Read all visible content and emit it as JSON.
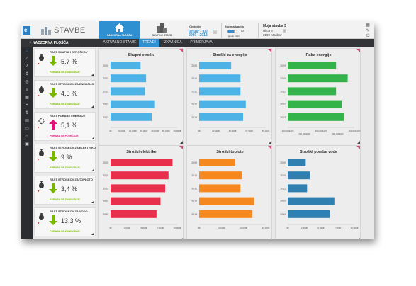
{
  "header": {
    "brand": "STAVBE",
    "nav_home_label": "NADZORNA PLOŠČA",
    "nav_buildings_label": "SKUPINE STAVB",
    "period_title": "Obdobje",
    "period_value_line1": "januar - julij",
    "period_value_line2": "2009 - 2013",
    "normalization_title": "Normalizacija",
    "normalization_toggle": "DA",
    "normalization_sub": "januar 2013",
    "building_name": "Moja stavba 3",
    "building_address1": "Ulica 5",
    "building_address2": "2000 Maribor"
  },
  "tabbar": {
    "label": "NADZORNA PLOŠČA",
    "tabs": [
      "AKTUALNO STANJE",
      "TRENDI",
      "IZKAZNICA",
      "PRIMERJAVA"
    ],
    "active_tab": "TRENDI"
  },
  "kpis": [
    {
      "title": "RAST SKUPNIH STROŠKOV",
      "value": "5,7 %",
      "direction": "down",
      "footer": "PORABA SE ZMANJŠUJE",
      "footer_color": "#7ab800"
    },
    {
      "title": "RAST STROŠKOV ZA ENERGIJO",
      "value": "4,5 %",
      "direction": "down",
      "footer": "PORABA SE ZMANJŠUJE",
      "footer_color": "#7ab800"
    },
    {
      "title": "RAST PORABE ENERGIJE",
      "value": "5,1 %",
      "direction": "up",
      "footer": "PORABA SE POVEČUJE",
      "footer_color": "#e0107a"
    },
    {
      "title": "RAST STROŠKOV ZA ELEKTRIKO",
      "value": "9 %",
      "direction": "down",
      "footer": "PORABA SE ZMANJŠUJE",
      "footer_color": "#7ab800"
    },
    {
      "title": "RAST STROŠKOV ZA TOPLOTO",
      "value": "3,4 %",
      "direction": "down",
      "footer": "PORABA SE ZMANJŠUJE",
      "footer_color": "#7ab800"
    },
    {
      "title": "RAST STROŠKOV ZA VODO",
      "value": "13,3 %",
      "direction": "down",
      "footer": "PORABA SE ZMANJŠUJE",
      "footer_color": "#7ab800"
    }
  ],
  "chart_data": [
    {
      "type": "bar",
      "orientation": "horizontal",
      "title": "Skupni stroški",
      "color": "#4db3e6",
      "categories": [
        "2009",
        "2010",
        "2011",
        "2012",
        "2013"
      ],
      "values": [
        27000,
        32000,
        31000,
        40000,
        37000
      ],
      "xlim": [
        0,
        60000
      ],
      "ticks": [
        "0€",
        "10.000€",
        "20.000€",
        "30.000€",
        "40.000€",
        "50.000€",
        "60.000€"
      ]
    },
    {
      "type": "bar",
      "orientation": "horizontal",
      "title": "Stroški za energijo",
      "color": "#4db3e6",
      "categories": [
        "2009",
        "2010",
        "2011",
        "2012",
        "2013"
      ],
      "values": [
        24000,
        31000,
        31000,
        35000,
        33000
      ],
      "xlim": [
        0,
        50000
      ],
      "ticks": [
        "0€",
        "12.500€",
        "25.000€",
        "37.500€",
        "50.000€"
      ]
    },
    {
      "type": "bar",
      "orientation": "horizontal",
      "title": "Raba energije",
      "color": "#33b34a",
      "categories": [
        "2009",
        "2010",
        "2011",
        "2012",
        "2013"
      ],
      "values": [
        245000,
        280000,
        245000,
        262000,
        268000
      ],
      "xlim": [
        100000,
        300000
      ],
      "ticks": [
        "100.000kWh",
        "200.000kWh",
        "300.000kWh"
      ],
      "subticks": [
        "150.000kWh",
        "250.000kWh"
      ]
    },
    {
      "type": "bar",
      "orientation": "horizontal",
      "title": "Stroški elektrike",
      "color": "#e8304c",
      "categories": [
        "2009",
        "2010",
        "2011",
        "2012",
        "2013"
      ],
      "values": [
        9300,
        8700,
        8200,
        7500,
        6900
      ],
      "xlim": [
        0,
        10000
      ],
      "ticks": [
        "0€",
        "2.500€",
        "5.000€",
        "7.500€",
        "10.000€"
      ]
    },
    {
      "type": "bar",
      "orientation": "horizontal",
      "title": "Stroški toplote",
      "color": "#f5891f",
      "categories": [
        "2009",
        "2010",
        "2011",
        "2012",
        "2013"
      ],
      "values": [
        16300,
        19300,
        18600,
        24800,
        24000
      ],
      "xlim": [
        0,
        30000
      ],
      "ticks": [
        "0€",
        "10.000€",
        "20.000€",
        "30.000€"
      ]
    },
    {
      "type": "bar",
      "orientation": "horizontal",
      "title": "Stroški porabe vode",
      "color": "#2f7fb0",
      "categories": [
        "2009",
        "2010",
        "2011",
        "2012",
        "2013"
      ],
      "values": [
        2700,
        3300,
        2900,
        7000,
        6300
      ],
      "xlim": [
        0,
        10000
      ],
      "ticks": [
        "0€",
        "2.500€",
        "5.000€",
        "7.500€",
        "10.000€"
      ]
    }
  ]
}
